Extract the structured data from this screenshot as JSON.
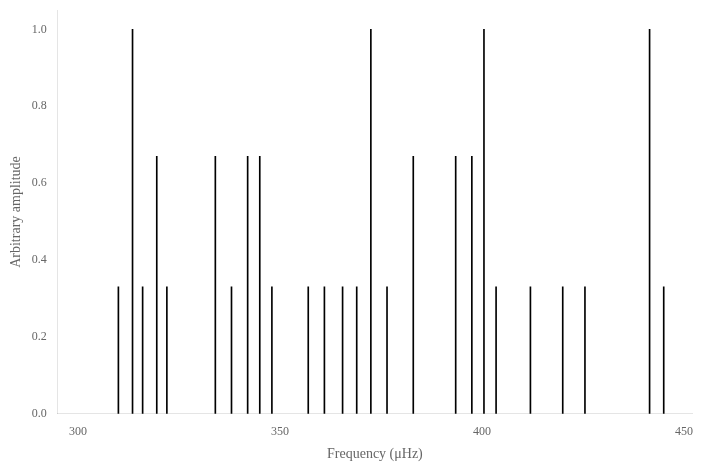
{
  "chart_data": {
    "type": "stem",
    "xlabel": "Frequency (μHz)",
    "ylabel": "Arbitrary amplitude",
    "x": [
      310.0,
      313.5,
      316.0,
      319.5,
      322.0,
      334.0,
      338.0,
      342.0,
      345.0,
      348.0,
      357.0,
      361.0,
      365.5,
      369.0,
      372.5,
      376.5,
      383.0,
      393.5,
      397.5,
      400.5,
      403.5,
      412.0,
      420.0,
      425.5,
      441.5,
      445.0
    ],
    "values": [
      0.33,
      1.0,
      0.33,
      0.67,
      0.33,
      0.67,
      0.33,
      0.67,
      0.67,
      0.33,
      0.33,
      0.33,
      0.33,
      0.33,
      1.0,
      0.33,
      0.67,
      0.67,
      0.67,
      1.0,
      0.33,
      0.33,
      0.33,
      0.33,
      1.0,
      0.33
    ],
    "color": "#000000",
    "xlim": [
      295,
      452
    ],
    "ylim": [
      0.0,
      1.05
    ],
    "xticks": [
      300,
      350,
      400,
      450
    ],
    "yticks": [
      {
        "value": 0.0,
        "label": "0.0"
      },
      0.2,
      0.4,
      0.6,
      0.8,
      {
        "value": 1.0,
        "label": "1.0"
      }
    ],
    "grid": false
  }
}
